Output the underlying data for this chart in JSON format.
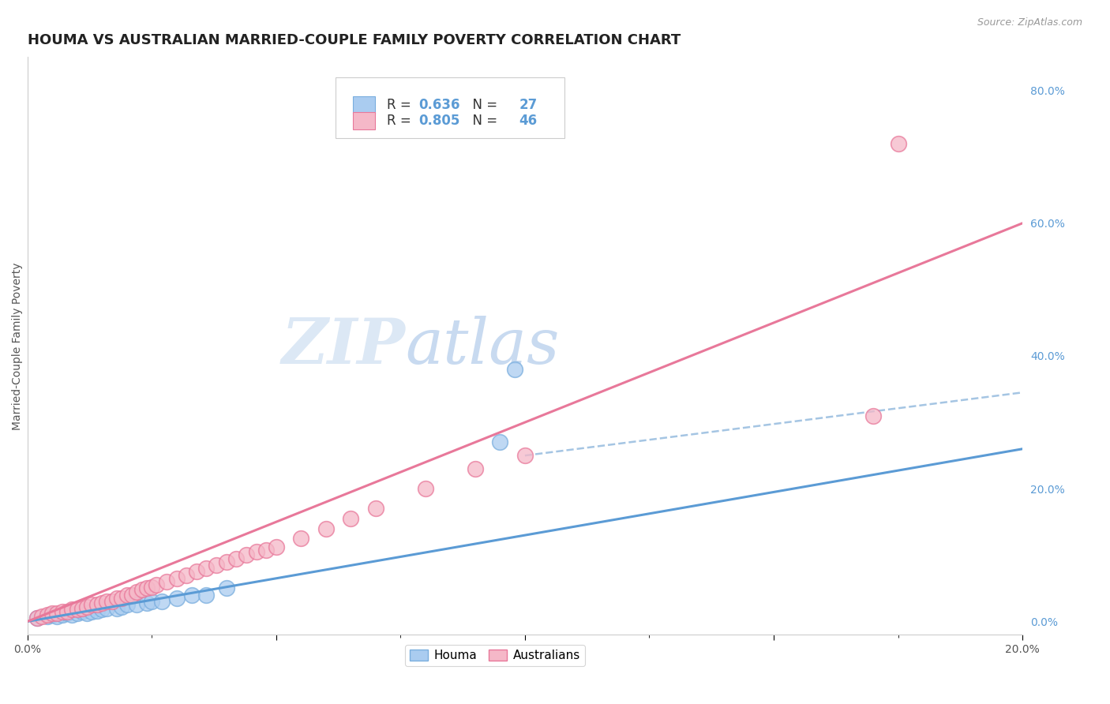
{
  "title": "HOUMA VS AUSTRALIAN MARRIED-COUPLE FAMILY POVERTY CORRELATION CHART",
  "source_text": "Source: ZipAtlas.com",
  "xlabel": "",
  "ylabel": "Married-Couple Family Poverty",
  "xlim": [
    0.0,
    0.2
  ],
  "ylim": [
    -0.02,
    0.85
  ],
  "xticks": [
    0.0,
    0.05,
    0.1,
    0.15,
    0.2
  ],
  "xtick_labels": [
    "0.0%",
    "",
    "",
    "",
    "20.0%"
  ],
  "yticks_right": [
    0.0,
    0.2,
    0.4,
    0.6,
    0.8
  ],
  "houma_R": 0.636,
  "houma_N": 27,
  "australians_R": 0.805,
  "australians_N": 46,
  "houma_color": "#aaccf0",
  "australians_color": "#f5b8c8",
  "houma_edge_color": "#7aaede",
  "australians_edge_color": "#e8789a",
  "houma_line_color": "#5b9bd5",
  "australians_line_color": "#e8789a",
  "dashed_line_color": "#9bbfe0",
  "watermark_zip": "ZIP",
  "watermark_atlas": "atlas",
  "watermark_color_zip": "#dce8f5",
  "watermark_color_atlas": "#c8daf0",
  "background_color": "#ffffff",
  "grid_color": "#d8d8d8",
  "houma_scatter_x": [
    0.002,
    0.004,
    0.005,
    0.006,
    0.007,
    0.008,
    0.009,
    0.01,
    0.011,
    0.012,
    0.013,
    0.014,
    0.015,
    0.016,
    0.018,
    0.019,
    0.02,
    0.022,
    0.024,
    0.025,
    0.027,
    0.03,
    0.033,
    0.036,
    0.04,
    0.095,
    0.098
  ],
  "houma_scatter_y": [
    0.005,
    0.008,
    0.01,
    0.008,
    0.01,
    0.012,
    0.01,
    0.012,
    0.015,
    0.013,
    0.015,
    0.016,
    0.018,
    0.02,
    0.02,
    0.022,
    0.025,
    0.025,
    0.028,
    0.03,
    0.03,
    0.035,
    0.04,
    0.04,
    0.05,
    0.27,
    0.38
  ],
  "australians_scatter_x": [
    0.002,
    0.003,
    0.004,
    0.005,
    0.006,
    0.007,
    0.008,
    0.009,
    0.01,
    0.011,
    0.012,
    0.013,
    0.014,
    0.015,
    0.016,
    0.017,
    0.018,
    0.019,
    0.02,
    0.021,
    0.022,
    0.023,
    0.024,
    0.025,
    0.026,
    0.028,
    0.03,
    0.032,
    0.034,
    0.036,
    0.038,
    0.04,
    0.042,
    0.044,
    0.046,
    0.048,
    0.05,
    0.055,
    0.06,
    0.065,
    0.07,
    0.08,
    0.09,
    0.1,
    0.17,
    0.175
  ],
  "australians_scatter_y": [
    0.005,
    0.008,
    0.01,
    0.012,
    0.012,
    0.015,
    0.015,
    0.018,
    0.018,
    0.02,
    0.022,
    0.025,
    0.025,
    0.028,
    0.03,
    0.03,
    0.035,
    0.035,
    0.04,
    0.04,
    0.045,
    0.048,
    0.05,
    0.052,
    0.055,
    0.06,
    0.065,
    0.07,
    0.075,
    0.08,
    0.085,
    0.09,
    0.095,
    0.1,
    0.105,
    0.108,
    0.112,
    0.125,
    0.14,
    0.155,
    0.17,
    0.2,
    0.23,
    0.25,
    0.31,
    0.72
  ],
  "houma_line_x": [
    0.0,
    0.2
  ],
  "houma_line_y": [
    0.0,
    0.26
  ],
  "australians_line_x": [
    0.0,
    0.2
  ],
  "australians_line_y": [
    0.0,
    0.6
  ],
  "dashed_line_x": [
    0.1,
    0.2
  ],
  "dashed_line_y": [
    0.25,
    0.345
  ],
  "title_fontsize": 13,
  "axis_label_fontsize": 10,
  "tick_fontsize": 10,
  "legend_fontsize": 12
}
